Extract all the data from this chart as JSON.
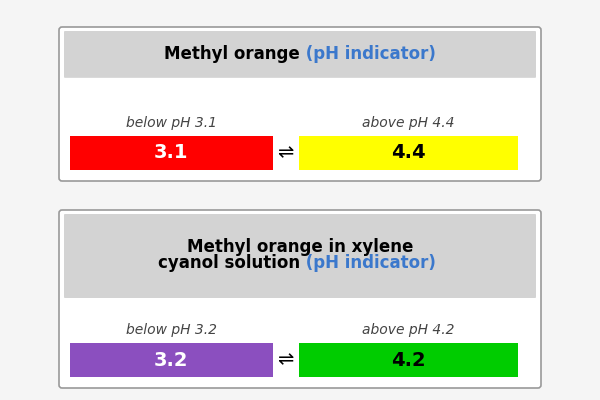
{
  "page_bg": "#f5f5f5",
  "box1": {
    "title_black": "Methyl orange",
    "title_blue": " (pH indicator)",
    "below_label": "below pH 3.1",
    "above_label": "above pH 4.4",
    "left_value": "3.1",
    "right_value": "4.4",
    "left_color": "#ff0000",
    "right_color": "#ffff00",
    "left_text_color": "#ffffff",
    "right_text_color": "#000000"
  },
  "box2": {
    "title_black_line1": "Methyl orange in xylene",
    "title_black_line2": "cyanol solution",
    "title_blue": " (pH indicator)",
    "below_label": "below pH 3.2",
    "above_label": "above pH 4.2",
    "left_value": "3.2",
    "right_value": "4.2",
    "left_color": "#8b4fbf",
    "right_color": "#00cc00",
    "left_text_color": "#ffffff",
    "right_text_color": "#000000"
  },
  "arrow_symbol": "⇌",
  "title_fontsize": 12,
  "label_fontsize": 10,
  "value_fontsize": 14,
  "box_bg": "#d3d3d3",
  "border_color": "#999999",
  "white_box": "#ffffff"
}
